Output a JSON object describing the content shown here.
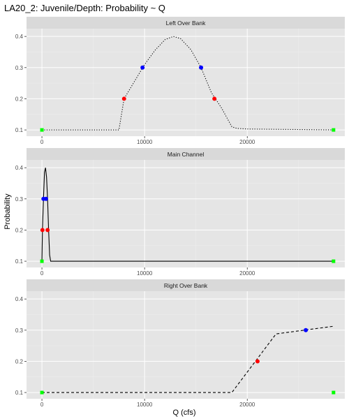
{
  "chart_data": {
    "type": "line",
    "title": "LA20_2: Juvenile/Depth: Probability ~ Q",
    "xlabel": "Q (cfs)",
    "ylabel": "Probability",
    "xlim": [
      -1500,
      29500
    ],
    "ylim": [
      0.08,
      0.425
    ],
    "x_ticks": [
      0,
      10000,
      20000
    ],
    "x_tick_labels": [
      "0",
      "10000",
      "20000"
    ],
    "y_ticks": [
      0.1,
      0.2,
      0.3,
      0.4
    ],
    "y_tick_labels": [
      "0.1",
      "0.2",
      "0.3",
      "0.4"
    ],
    "grid": true,
    "colors": {
      "panel_bg": "#e5e5e5",
      "strip_bg": "#d9d9d9",
      "grid_major": "#ffffff",
      "grid_minor": "#efefef",
      "line": "#000000",
      "red_points": "#ff0000",
      "blue_points": "#0000ff",
      "green_points": "#00ff00"
    },
    "panels": [
      {
        "strip": "Left Over Bank",
        "linetype": "dotted",
        "line": {
          "x": [
            0,
            7500,
            8000,
            9000,
            10000,
            11000,
            12000,
            12800,
            13500,
            14500,
            15500,
            16500,
            17500,
            18500,
            19000,
            20000,
            28500
          ],
          "y": [
            0.1,
            0.1,
            0.2,
            0.255,
            0.31,
            0.355,
            0.39,
            0.4,
            0.393,
            0.358,
            0.3,
            0.22,
            0.17,
            0.11,
            0.105,
            0.103,
            0.1
          ]
        },
        "points": [
          {
            "color": "red",
            "x": [
              8000,
              16800
            ],
            "y": [
              0.2,
              0.2
            ]
          },
          {
            "color": "blue",
            "x": [
              9800,
              15500
            ],
            "y": [
              0.3,
              0.3
            ]
          },
          {
            "color": "green",
            "x": [
              0,
              28400
            ],
            "y": [
              0.1,
              0.1
            ]
          }
        ]
      },
      {
        "strip": "Main Channel",
        "linetype": "solid",
        "line": {
          "x": [
            0,
            50,
            150,
            250,
            350,
            450,
            550,
            650,
            750,
            850,
            1000,
            28500
          ],
          "y": [
            0.1,
            0.2,
            0.3,
            0.385,
            0.4,
            0.37,
            0.3,
            0.2,
            0.12,
            0.1,
            0.1,
            0.1
          ]
        },
        "points": [
          {
            "color": "red",
            "x": [
              50,
              550
            ],
            "y": [
              0.2,
              0.2
            ]
          },
          {
            "color": "blue",
            "x": [
              150,
              400
            ],
            "y": [
              0.3,
              0.3
            ]
          },
          {
            "color": "green",
            "x": [
              0,
              28400
            ],
            "y": [
              0.1,
              0.1
            ]
          }
        ]
      },
      {
        "strip": "Right Over Bank",
        "linetype": "dashed",
        "line": {
          "x": [
            0,
            18500,
            22800,
            28500
          ],
          "y": [
            0.1,
            0.1,
            0.288,
            0.313
          ]
        },
        "points": [
          {
            "color": "red",
            "x": [
              21000
            ],
            "y": [
              0.2
            ]
          },
          {
            "color": "blue",
            "x": [
              25700
            ],
            "y": [
              0.3
            ]
          },
          {
            "color": "green",
            "x": [
              0,
              28400
            ],
            "y": [
              0.1,
              0.1
            ]
          }
        ]
      }
    ]
  }
}
